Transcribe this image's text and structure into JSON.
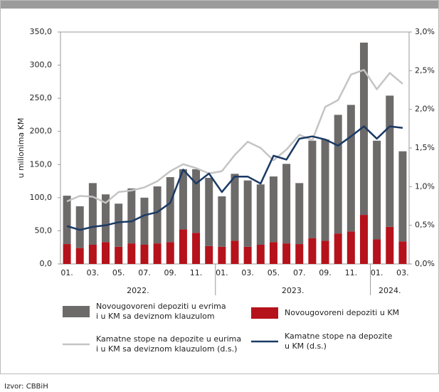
{
  "chart_data": {
    "type": "bar_line",
    "y_axis_label": "u milionima KM",
    "source": "Izvor: CBBiH",
    "categories": [
      "01.",
      null,
      "03.",
      null,
      "05.",
      null,
      "07.",
      null,
      "09.",
      null,
      "11.",
      null,
      "01.",
      null,
      "03.",
      null,
      "05.",
      null,
      "07.",
      null,
      "09.",
      null,
      "11.",
      null,
      "01.",
      null,
      "03."
    ],
    "years": [
      "2022.",
      "2023.",
      "2024."
    ],
    "series": [
      {
        "name": "Novougovoreni depoziti u KM",
        "color": "#b5121b",
        "kind": "bar",
        "values": [
          30,
          24,
          29,
          33,
          26,
          31,
          29,
          31,
          33,
          52,
          47,
          27,
          26,
          35,
          26,
          29,
          33,
          31,
          30,
          39,
          35,
          46,
          49,
          74,
          37,
          56,
          34
        ]
      },
      {
        "name": "Novougovoreni depoziti u evrima\ni u KM sa deviznom klauzulom",
        "color": "#6d6a6a",
        "kind": "bar",
        "values": [
          73,
          63,
          93,
          72,
          65,
          83,
          71,
          86,
          98,
          91,
          96,
          103,
          76,
          101,
          100,
          91,
          99,
          120,
          92,
          147,
          153,
          179,
          191,
          260,
          149,
          198,
          136
        ]
      },
      {
        "name": "Kamatne stope na depozite u eurima\ni u KM sa deviznom klauzulom (d.s.)",
        "color": "#c4c4c4",
        "kind": "line",
        "axis": "y2",
        "values": [
          0.81,
          0.88,
          0.87,
          0.79,
          0.93,
          0.95,
          0.99,
          1.07,
          1.2,
          1.29,
          1.24,
          1.17,
          1.2,
          1.41,
          1.58,
          1.5,
          1.34,
          1.48,
          1.67,
          1.6,
          2.03,
          2.12,
          2.45,
          2.51,
          2.26,
          2.47,
          2.33
        ]
      },
      {
        "name": "Kamatne stope na depozite\nu KM (d.s.)",
        "color": "#1b3a64",
        "kind": "line",
        "axis": "y2",
        "values": [
          0.49,
          0.44,
          0.48,
          0.5,
          0.54,
          0.55,
          0.63,
          0.67,
          0.79,
          1.22,
          1.04,
          1.17,
          0.93,
          1.13,
          1.13,
          1.04,
          1.4,
          1.35,
          1.62,
          1.65,
          1.61,
          1.53,
          1.65,
          1.78,
          1.62,
          1.78,
          1.76
        ]
      }
    ],
    "ylim": [
      0,
      350
    ],
    "yticks": [
      {
        "value": 0,
        "label": "0,0"
      },
      {
        "value": 50,
        "label": "50,0"
      },
      {
        "value": 100,
        "label": "100,0"
      },
      {
        "value": 150,
        "label": "150,0"
      },
      {
        "value": 200,
        "label": "200,0"
      },
      {
        "value": 250,
        "label": "250,0"
      },
      {
        "value": 300,
        "label": "300,0"
      },
      {
        "value": 350,
        "label": "350,0"
      }
    ],
    "y2lim": [
      0,
      3
    ],
    "y2ticks": [
      {
        "value": 0,
        "label": "0,0%"
      },
      {
        "value": 0.5,
        "label": "0,5%"
      },
      {
        "value": 1,
        "label": "1,0%"
      },
      {
        "value": 1.5,
        "label": "1,5%"
      },
      {
        "value": 2,
        "label": "2,0%"
      },
      {
        "value": 2.5,
        "label": "2,5%"
      },
      {
        "value": 3,
        "label": "3,0%"
      }
    ],
    "grid": false
  }
}
